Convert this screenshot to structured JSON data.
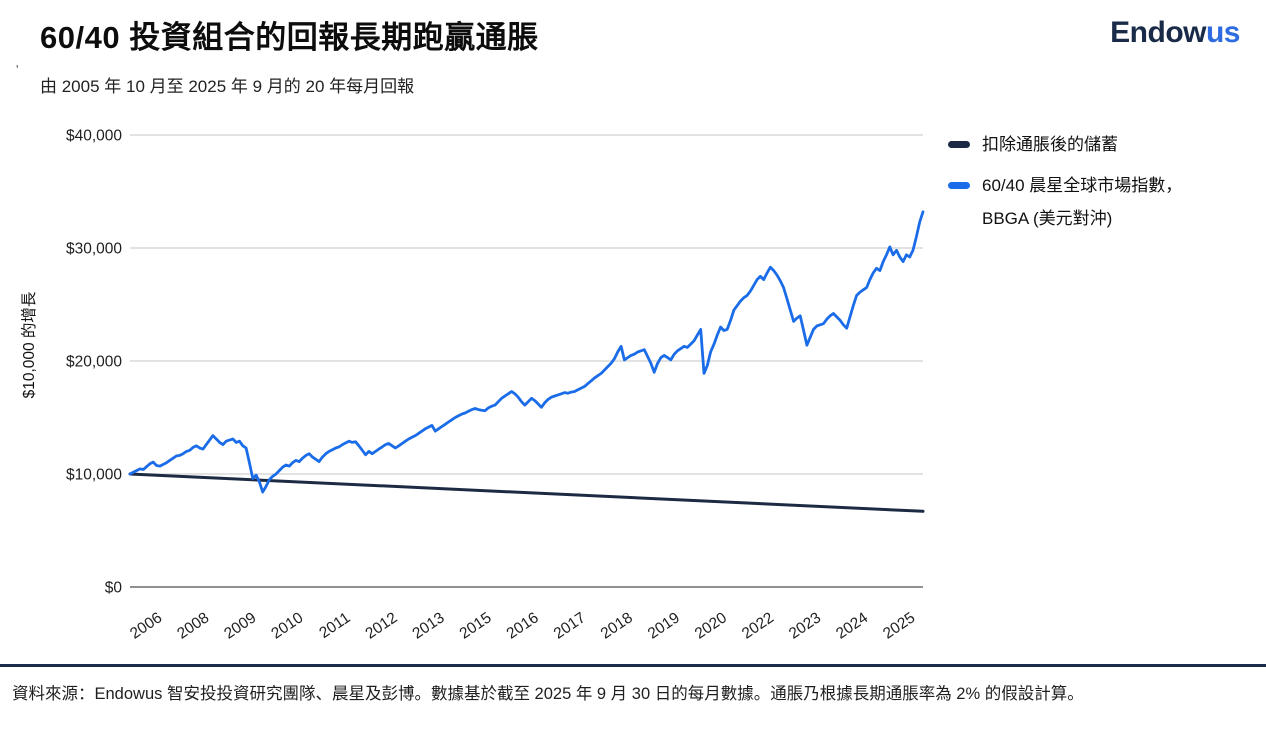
{
  "header": {
    "title": "60/40 投資組合的回報長期跑贏通脹",
    "subtitle": "由 2005 年 10 月至 2025 年 9 月的 20 年每月回報",
    "stray_mark": "'",
    "logo": {
      "part1": "Endow",
      "part2": "us",
      "color1": "#1a2b49",
      "color2": "#2e6be0"
    }
  },
  "legend": {
    "position": "right",
    "items": [
      {
        "label": "扣除通脹後的儲蓄",
        "label2": "",
        "color": "#1c2b43"
      },
      {
        "label": "60/40 晨星全球市場指數，",
        "label2": "BBGA (美元對沖)",
        "color": "#1a6ce8"
      }
    ]
  },
  "chart_data": {
    "type": "line",
    "title": "60/40 投資組合的回報長期跑贏通脹",
    "subtitle": "由 2005 年 10 月至 2025 年 9 月的 20 年每月回報",
    "xlabel": "",
    "ylabel": "$10,000 的增長",
    "ylim": [
      0,
      40000
    ],
    "grid": "horizontal",
    "legend_position": "right",
    "y_ticks": [
      {
        "value": 0,
        "label": "$0"
      },
      {
        "value": 10000,
        "label": "$10,000"
      },
      {
        "value": 20000,
        "label": "$20,000"
      },
      {
        "value": 30000,
        "label": "$30,000"
      },
      {
        "value": 40000,
        "label": "$40,000"
      }
    ],
    "x_tick_labels": [
      "2006",
      "2008",
      "2009",
      "2010",
      "2011",
      "2012",
      "2013",
      "2015",
      "2016",
      "2017",
      "2018",
      "2019",
      "2020",
      "2022",
      "2023",
      "2024",
      "2025"
    ],
    "x_axis": {
      "start": "2005-10",
      "end": "2025-09",
      "n_months": 240
    },
    "series": [
      {
        "name": "扣除通脹後的儲蓄",
        "color": "#1c2b43",
        "style": "straight",
        "points": [
          [
            0,
            10000
          ],
          [
            239,
            6700
          ]
        ]
      },
      {
        "name": "60/40 晨星全球市場指數，BBGA (美元對沖)",
        "color": "#1a6ce8",
        "style": "monthly",
        "values": [
          10000,
          10150,
          10300,
          10450,
          10400,
          10650,
          10900,
          11050,
          10750,
          10700,
          10850,
          11000,
          11200,
          11400,
          11600,
          11650,
          11800,
          12000,
          12100,
          12350,
          12500,
          12300,
          12200,
          12600,
          13000,
          13400,
          13100,
          12800,
          12600,
          12900,
          13000,
          13100,
          12800,
          12900,
          12500,
          12300,
          11000,
          9600,
          9900,
          9300,
          8400,
          8900,
          9500,
          9800,
          10000,
          10300,
          10600,
          10800,
          10700,
          11000,
          11200,
          11100,
          11400,
          11650,
          11800,
          11500,
          11300,
          11100,
          11500,
          11800,
          12000,
          12150,
          12300,
          12400,
          12600,
          12750,
          12900,
          12800,
          12850,
          12500,
          12100,
          11700,
          12000,
          11800,
          12000,
          12200,
          12400,
          12600,
          12700,
          12500,
          12300,
          12500,
          12700,
          12900,
          13100,
          13250,
          13400,
          13600,
          13800,
          14000,
          14150,
          14300,
          13800,
          14000,
          14200,
          14400,
          14600,
          14800,
          15000,
          15150,
          15300,
          15400,
          15550,
          15700,
          15800,
          15700,
          15650,
          15600,
          15850,
          16000,
          16100,
          16400,
          16700,
          16900,
          17100,
          17300,
          17100,
          16800,
          16400,
          16100,
          16400,
          16700,
          16500,
          16200,
          15900,
          16300,
          16600,
          16800,
          16900,
          17000,
          17100,
          17200,
          17150,
          17250,
          17300,
          17450,
          17600,
          17750,
          18000,
          18250,
          18500,
          18700,
          18900,
          19200,
          19500,
          19800,
          20200,
          20800,
          21300,
          20100,
          20300,
          20500,
          20600,
          20800,
          20900,
          21000,
          20400,
          19800,
          19000,
          19800,
          20300,
          20500,
          20300,
          20100,
          20600,
          20900,
          21100,
          21300,
          21200,
          21500,
          21800,
          22300,
          22800,
          18900,
          19600,
          20800,
          21500,
          22300,
          23000,
          22700,
          22800,
          23600,
          24500,
          24900,
          25300,
          25600,
          25800,
          26200,
          26700,
          27200,
          27500,
          27200,
          27800,
          28300,
          28000,
          27600,
          27100,
          26500,
          25500,
          24500,
          23500,
          23800,
          24000,
          22700,
          21400,
          22100,
          22800,
          23100,
          23200,
          23300,
          23700,
          24000,
          24200,
          23900,
          23600,
          23200,
          22900,
          23900,
          24900,
          25800,
          26100,
          26300,
          26500,
          27200,
          27800,
          28200,
          28000,
          28800,
          29400,
          30100,
          29400,
          29800,
          29200,
          28800,
          29400,
          29200,
          29800,
          31000,
          32300,
          33200
        ]
      }
    ],
    "colors": {
      "gridline": "#d9d9d9",
      "axis_baseline": "#6b6b6b",
      "tick_text": "#1f1f1f"
    }
  },
  "footer": {
    "source": "資料來源：Endowus 智安投投資研究團隊、晨星及彭博。數據基於截至 2025 年 9 月 30 日的每月數據。通脹乃根據長期通脹率為 2% 的假設計算。"
  }
}
